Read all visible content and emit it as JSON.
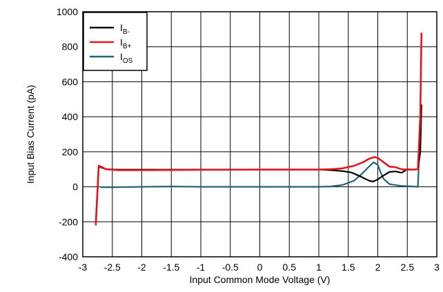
{
  "chart_data": {
    "type": "line",
    "xlabel": "Input Common Mode Voltage (V)",
    "ylabel": "Input Bias Current (pA)",
    "xlim": [
      -3,
      3
    ],
    "ylim": [
      -400,
      1000
    ],
    "x_ticks": [
      "-3",
      "-2.5",
      "-2",
      "-1.5",
      "-1",
      "-0.5",
      "0",
      "0.5",
      "1",
      "1.5",
      "2",
      "2.5",
      "3"
    ],
    "y_ticks": [
      "-400",
      "-200",
      "0",
      "200",
      "400",
      "600",
      "800",
      "1000"
    ],
    "grid": true,
    "legend_position": "top-left",
    "series": [
      {
        "name": "I",
        "name_sub": "B-",
        "color": "#000000",
        "points": [
          [
            -2.78,
            -210
          ],
          [
            -2.73,
            115
          ],
          [
            -2.6,
            100
          ],
          [
            -2.4,
            98
          ],
          [
            -2.0,
            98
          ],
          [
            -1.0,
            98
          ],
          [
            0.0,
            98
          ],
          [
            1.0,
            98
          ],
          [
            1.2,
            95
          ],
          [
            1.4,
            90
          ],
          [
            1.55,
            82
          ],
          [
            1.7,
            60
          ],
          [
            1.85,
            35
          ],
          [
            1.92,
            30
          ],
          [
            2.0,
            42
          ],
          [
            2.1,
            65
          ],
          [
            2.2,
            85
          ],
          [
            2.3,
            88
          ],
          [
            2.4,
            80
          ],
          [
            2.45,
            90
          ],
          [
            2.5,
            100
          ],
          [
            2.6,
            98
          ],
          [
            2.68,
            100
          ],
          [
            2.72,
            200
          ],
          [
            2.74,
            470
          ]
        ]
      },
      {
        "name": "I",
        "name_sub": "B+",
        "color": "#e8141c",
        "points": [
          [
            -2.78,
            -220
          ],
          [
            -2.73,
            120
          ],
          [
            -2.6,
            100
          ],
          [
            -2.4,
            95
          ],
          [
            -2.0,
            95
          ],
          [
            -1.0,
            97
          ],
          [
            0.0,
            98
          ],
          [
            1.0,
            98
          ],
          [
            1.2,
            100
          ],
          [
            1.4,
            105
          ],
          [
            1.6,
            120
          ],
          [
            1.75,
            140
          ],
          [
            1.85,
            160
          ],
          [
            1.95,
            170
          ],
          [
            2.0,
            165
          ],
          [
            2.1,
            140
          ],
          [
            2.2,
            115
          ],
          [
            2.3,
            112
          ],
          [
            2.4,
            100
          ],
          [
            2.5,
            98
          ],
          [
            2.6,
            98
          ],
          [
            2.68,
            100
          ],
          [
            2.72,
            400
          ],
          [
            2.74,
            880
          ]
        ]
      },
      {
        "name": "I",
        "name_sub": "OS",
        "color": "#1f6470",
        "points": [
          [
            -2.7,
            -2
          ],
          [
            -2.5,
            -3
          ],
          [
            -2.0,
            0
          ],
          [
            -1.5,
            2
          ],
          [
            -1.0,
            0
          ],
          [
            -0.5,
            0
          ],
          [
            0.0,
            0
          ],
          [
            0.5,
            0
          ],
          [
            1.0,
            0
          ],
          [
            1.2,
            2
          ],
          [
            1.4,
            10
          ],
          [
            1.6,
            35
          ],
          [
            1.75,
            80
          ],
          [
            1.85,
            115
          ],
          [
            1.93,
            140
          ],
          [
            2.0,
            125
          ],
          [
            2.05,
            80
          ],
          [
            2.1,
            45
          ],
          [
            2.2,
            15
          ],
          [
            2.4,
            5
          ],
          [
            2.6,
            2
          ],
          [
            2.68,
            0
          ],
          [
            2.71,
            250
          ],
          [
            2.73,
            420
          ]
        ]
      }
    ]
  }
}
